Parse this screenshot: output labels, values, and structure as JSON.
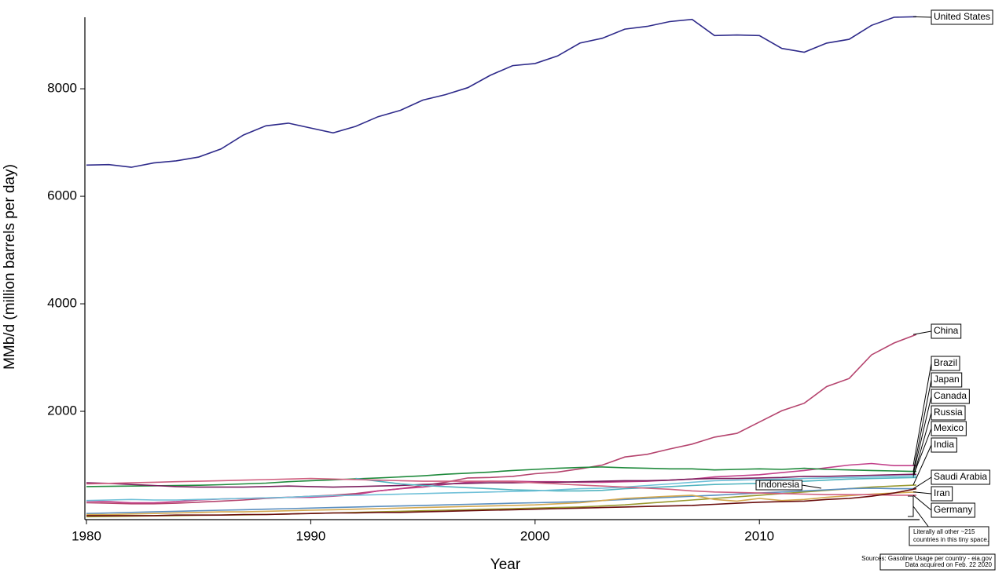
{
  "chart_data": {
    "type": "line",
    "xlabel": "Year",
    "ylabel": "MMb/d (million barrels per day)",
    "x": [
      1980,
      1981,
      1982,
      1983,
      1984,
      1985,
      1986,
      1987,
      1988,
      1989,
      1990,
      1991,
      1992,
      1993,
      1994,
      1995,
      1996,
      1997,
      1998,
      1999,
      2000,
      2001,
      2002,
      2003,
      2004,
      2005,
      2006,
      2007,
      2008,
      2009,
      2010,
      2011,
      2012,
      2013,
      2014,
      2015,
      2016,
      2017
    ],
    "xlim": [
      1980,
      2017
    ],
    "xticks": [
      1980,
      1990,
      2000,
      2010
    ],
    "ylim": [
      0,
      9330
    ],
    "yticks": [
      2000,
      4000,
      6000,
      8000
    ],
    "series": [
      {
        "name": "United States",
        "color": "#2e2a8a",
        "values": [
          6580,
          6590,
          6540,
          6620,
          6660,
          6730,
          6880,
          7140,
          7310,
          7360,
          7270,
          7180,
          7300,
          7480,
          7600,
          7790,
          7890,
          8020,
          8250,
          8430,
          8470,
          8610,
          8850,
          8940,
          9110,
          9160,
          9250,
          9290,
          8990,
          9000,
          8990,
          8750,
          8680,
          8850,
          8920,
          9180,
          9330,
          9340
        ]
      },
      {
        "name": "China",
        "color": "#b5446e",
        "values": [
          300,
          290,
          280,
          280,
          290,
          310,
          330,
          350,
          380,
          400,
          420,
          440,
          470,
          520,
          560,
          620,
          680,
          760,
          770,
          790,
          840,
          870,
          930,
          1000,
          1150,
          1200,
          1300,
          1390,
          1520,
          1590,
          1800,
          2010,
          2150,
          2460,
          2610,
          3050,
          3270,
          3430
        ]
      },
      {
        "name": "Brazil",
        "color": "#c2408a",
        "values": [
          330,
          320,
          300,
          300,
          320,
          350,
          370,
          380,
          390,
          400,
          400,
          420,
          450,
          520,
          560,
          590,
          640,
          680,
          700,
          700,
          690,
          690,
          680,
          680,
          690,
          700,
          720,
          740,
          780,
          800,
          820,
          860,
          900,
          950,
          1000,
          1030,
          990,
          990
        ]
      },
      {
        "name": "Japan",
        "color": "#1f8a3c",
        "values": [
          600,
          605,
          610,
          615,
          620,
          625,
          635,
          650,
          665,
          690,
          710,
          725,
          745,
          760,
          780,
          800,
          830,
          850,
          870,
          900,
          920,
          940,
          955,
          965,
          950,
          940,
          930,
          930,
          910,
          920,
          930,
          920,
          940,
          920,
          910,
          900,
          890,
          880
        ]
      },
      {
        "name": "Canada",
        "color": "#7b1e5e",
        "values": [
          670,
          660,
          640,
          620,
          600,
          590,
          590,
          590,
          600,
          610,
          600,
          590,
          600,
          610,
          620,
          640,
          650,
          660,
          670,
          670,
          680,
          680,
          690,
          700,
          710,
          710,
          720,
          740,
          750,
          750,
          760,
          770,
          790,
          790,
          800,
          810,
          820,
          830
        ]
      },
      {
        "name": "Russia",
        "color": "#4fb3bf",
        "values": [
          null,
          null,
          null,
          null,
          null,
          null,
          null,
          null,
          null,
          null,
          null,
          null,
          750,
          700,
          650,
          620,
          600,
          580,
          560,
          540,
          530,
          520,
          520,
          530,
          560,
          580,
          600,
          620,
          640,
          650,
          660,
          680,
          700,
          720,
          740,
          750,
          760,
          770
        ]
      },
      {
        "name": "Mexico",
        "color": "#6fc0d8",
        "values": [
          340,
          350,
          360,
          350,
          350,
          360,
          370,
          380,
          390,
          400,
          420,
          430,
          440,
          450,
          460,
          470,
          480,
          490,
          500,
          510,
          520,
          540,
          560,
          570,
          590,
          620,
          650,
          680,
          710,
          720,
          730,
          740,
          750,
          760,
          770,
          780,
          790,
          800
        ]
      },
      {
        "name": "India",
        "color": "#9a9a30",
        "values": [
          40,
          45,
          50,
          55,
          60,
          65,
          70,
          75,
          80,
          90,
          100,
          110,
          120,
          130,
          140,
          150,
          160,
          170,
          180,
          190,
          200,
          210,
          220,
          240,
          260,
          290,
          320,
          350,
          380,
          410,
          440,
          470,
          500,
          530,
          560,
          590,
          610,
          630
        ]
      },
      {
        "name": "Saudi Arabia",
        "color": "#5b8fc0",
        "values": [
          100,
          110,
          120,
          130,
          140,
          150,
          160,
          170,
          180,
          190,
          200,
          210,
          220,
          230,
          240,
          250,
          260,
          270,
          280,
          290,
          300,
          310,
          320,
          340,
          360,
          380,
          400,
          420,
          440,
          460,
          480,
          500,
          520,
          540,
          560,
          570,
          560,
          560
        ]
      },
      {
        "name": "Iran",
        "color": "#d4a84e",
        "values": [
          80,
          80,
          90,
          100,
          110,
          120,
          130,
          130,
          140,
          150,
          160,
          170,
          180,
          190,
          200,
          210,
          220,
          230,
          240,
          250,
          260,
          280,
          300,
          340,
          380,
          400,
          420,
          440,
          360,
          330,
          380,
          340,
          360,
          400,
          430,
          460,
          480,
          500
        ]
      },
      {
        "name": "Germany",
        "color": "#d06080",
        "values": [
          650,
          660,
          670,
          680,
          690,
          700,
          710,
          720,
          730,
          740,
          750,
          740,
          730,
          720,
          710,
          700,
          700,
          700,
          700,
          690,
          670,
          650,
          630,
          610,
          590,
          570,
          550,
          520,
          500,
          490,
          480,
          470,
          460,
          450,
          450,
          450,
          440,
          440
        ]
      },
      {
        "name": "Indonesia",
        "color": "#6a0d0d",
        "values": [
          60,
          60,
          60,
          60,
          70,
          70,
          70,
          80,
          80,
          90,
          100,
          110,
          110,
          120,
          120,
          130,
          140,
          150,
          160,
          170,
          180,
          190,
          200,
          210,
          220,
          230,
          240,
          250,
          270,
          290,
          310,
          320,
          330,
          360,
          380,
          420,
          480,
          560
        ]
      }
    ],
    "annotations": [
      "Literally all other ~215",
      "countries in this tiny space."
    ],
    "source": [
      "Sources: Gasoline Usage per country - eia.gov",
      "Data acquired on Feb. 22 2020"
    ]
  }
}
